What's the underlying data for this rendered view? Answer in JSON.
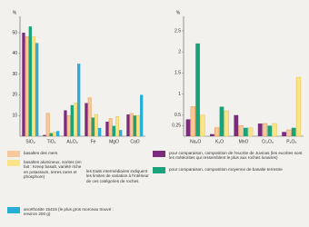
{
  "chart_data": [
    {
      "type": "bar",
      "axis_label": "%",
      "categories": [
        "SiO₂",
        "TiO₂",
        "Al₂O₃",
        "Fe",
        "MgO",
        "CaO"
      ],
      "ylim": [
        0,
        57
      ],
      "yticks": [
        10,
        20,
        30,
        40,
        50
      ],
      "series": [
        {
          "name": "pour comparaison, composition de l'eucrite de Juvinas (les eucrites sont les météorites qui ressemblent le plus aux roches lunaires)",
          "color": "#7b2a7e",
          "values": [
            50,
            0.6,
            12.5,
            16,
            7,
            10.5
          ]
        },
        {
          "name": "basaltes des mers",
          "color": "#f7c89b",
          "values": [
            48,
            11,
            10,
            18.5,
            8.5,
            11
          ]
        },
        {
          "name": "pour comparaison, composition moyenne de basalte terrestre",
          "color": "#1aa37a",
          "values": [
            53,
            1.5,
            15,
            9,
            5,
            10
          ]
        },
        {
          "name": "basaltes alumineux, norites (en fait : Kreep basalt, variété riche en potassium, terres rares et phosphore)",
          "color": "#fbe38a",
          "values": [
            48,
            2,
            16,
            10.5,
            9.5,
            10
          ]
        },
        {
          "name": "anorthosite 15415 (le plus gros morceau trouvé : environ 200 g)",
          "color": "#2aaed8",
          "values": [
            45,
            2.5,
            35,
            4,
            3,
            20
          ]
        }
      ]
    },
    {
      "type": "bar",
      "axis_label": "%",
      "categories": [
        "Na₂O",
        "K₂O",
        "MnO",
        "Cr₂O₃",
        "P₂O₅"
      ],
      "ylim": [
        0,
        2.8
      ],
      "yticks": [
        0.25,
        0.5,
        1,
        1.5,
        2,
        2.5
      ],
      "series": [
        {
          "values": [
            0.4,
            0.05,
            0.5,
            0.3,
            0.1
          ]
        },
        {
          "values": [
            0.7,
            0.2,
            0.25,
            0.3,
            0.15
          ]
        },
        {
          "values": [
            2.2,
            0.7,
            0.2,
            0.25,
            0.2
          ]
        },
        {
          "values": [
            0.5,
            0.6,
            0.2,
            0.3,
            1.4
          ]
        }
      ]
    }
  ],
  "note": "les traits intermédiaires indiquent les limites de variation à l'intérieur de ces catégories de roches"
}
